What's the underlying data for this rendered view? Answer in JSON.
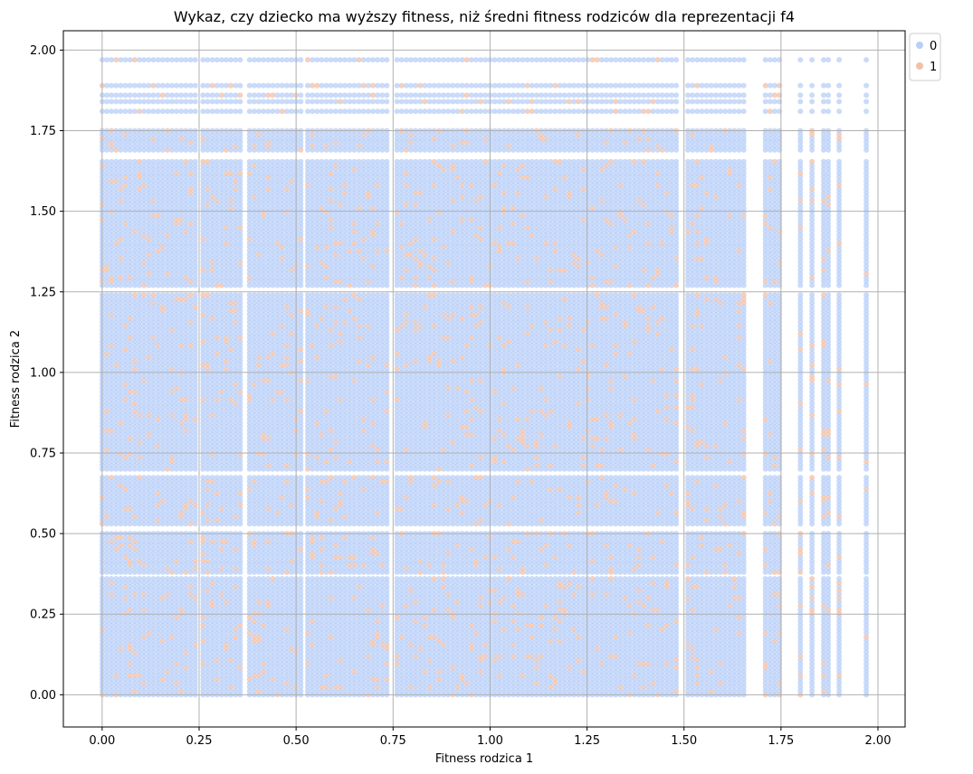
{
  "chart_data": {
    "type": "scatter",
    "title": "Wykaz, czy dziecko ma wyższy fitness, niż średni fitness rodziców dla reprezentacji f4",
    "xlabel": "Fitness rodzica 1",
    "ylabel": "Fitness rodzica 2",
    "xlim": [
      -0.1,
      2.07
    ],
    "ylim": [
      -0.1,
      2.06
    ],
    "xticks": [
      0.0,
      0.25,
      0.5,
      0.75,
      1.0,
      1.25,
      1.5,
      1.75,
      2.0
    ],
    "yticks": [
      0.0,
      0.25,
      0.5,
      0.75,
      1.0,
      1.25,
      1.5,
      1.75,
      2.0
    ],
    "xtick_labels": [
      "0.00",
      "0.25",
      "0.50",
      "0.75",
      "1.00",
      "1.25",
      "1.50",
      "1.75",
      "2.00"
    ],
    "ytick_labels": [
      "0.00",
      "0.25",
      "0.50",
      "0.75",
      "1.00",
      "1.25",
      "1.50",
      "1.75",
      "2.00"
    ],
    "grid": true,
    "legend_position": "upper-right-outside",
    "series": [
      {
        "name": "0",
        "color": "#b8cff8"
      },
      {
        "name": "1",
        "color": "#f2c0a8"
      }
    ],
    "x_bands": [
      [
        0.0,
        0.24
      ],
      [
        0.26,
        0.36
      ],
      [
        0.38,
        0.52
      ],
      [
        0.53,
        0.74
      ],
      [
        0.76,
        1.49
      ],
      [
        1.51,
        1.66
      ],
      [
        1.71,
        1.75
      ],
      [
        1.8,
        1.81
      ],
      [
        1.83,
        1.84
      ],
      [
        1.86,
        1.88
      ],
      [
        1.9,
        1.9
      ],
      [
        1.97,
        1.97
      ]
    ],
    "y_bands": [
      [
        0.0,
        0.36
      ],
      [
        0.38,
        0.51
      ],
      [
        0.53,
        0.68
      ],
      [
        0.7,
        1.25
      ],
      [
        1.27,
        1.66
      ],
      [
        1.69,
        1.75
      ],
      [
        1.81,
        1.81
      ],
      [
        1.84,
        1.84
      ],
      [
        1.86,
        1.87
      ],
      [
        1.89,
        1.9
      ],
      [
        1.97,
        1.97
      ]
    ]
  }
}
